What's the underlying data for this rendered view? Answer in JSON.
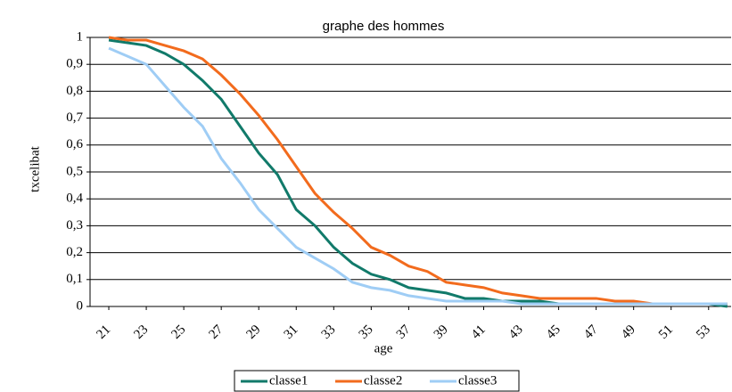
{
  "chart_data": {
    "type": "line",
    "title": "graphe des hommes",
    "x_label": "age",
    "y_label": "txcelibat",
    "x": [
      21,
      22,
      23,
      24,
      25,
      26,
      27,
      28,
      29,
      30,
      31,
      32,
      33,
      34,
      35,
      36,
      37,
      38,
      39,
      40,
      41,
      42,
      43,
      44,
      45,
      46,
      47,
      48,
      49,
      50,
      51,
      52,
      53,
      54
    ],
    "xlim": [
      20,
      54.2
    ],
    "xticks": [
      21,
      23,
      25,
      27,
      29,
      31,
      33,
      35,
      37,
      39,
      41,
      43,
      45,
      47,
      49,
      51,
      53
    ],
    "ylim": [
      0,
      1
    ],
    "yticks": [
      0,
      {
        "value": 0.1,
        "label": "0,1"
      },
      {
        "value": 0.2,
        "label": "0,2"
      },
      {
        "value": 0.3,
        "label": "0,3"
      },
      {
        "value": 0.4,
        "label": "0,4"
      },
      {
        "value": 0.5,
        "label": "0,5"
      },
      {
        "value": 0.6,
        "label": "0,6"
      },
      {
        "value": 0.7,
        "label": "0,7"
      },
      {
        "value": 0.8,
        "label": "0,8"
      },
      {
        "value": 0.9,
        "label": "0,9"
      },
      1
    ],
    "grid": true,
    "series": [
      {
        "name": "classe1",
        "color": "#117a6a",
        "values": [
          0.99,
          0.98,
          0.97,
          0.94,
          0.9,
          0.84,
          0.77,
          0.67,
          0.57,
          0.49,
          0.36,
          0.3,
          0.22,
          0.16,
          0.12,
          0.1,
          0.07,
          0.06,
          0.05,
          0.03,
          0.03,
          0.02,
          0.02,
          0.02,
          0.01,
          0.01,
          0.01,
          0.01,
          0.01,
          0.01,
          0.01,
          0.01,
          0.01,
          0.0
        ]
      },
      {
        "name": "classe2",
        "color": "#f26b1d",
        "values": [
          1.0,
          0.99,
          0.99,
          0.97,
          0.95,
          0.92,
          0.86,
          0.79,
          0.71,
          0.62,
          0.52,
          0.42,
          0.35,
          0.29,
          0.22,
          0.19,
          0.15,
          0.13,
          0.09,
          0.08,
          0.07,
          0.05,
          0.04,
          0.03,
          0.03,
          0.03,
          0.03,
          0.02,
          0.02,
          0.01,
          0.01,
          0.01,
          0.01,
          0.01
        ]
      },
      {
        "name": "classe3",
        "color": "#9fcdf5",
        "values": [
          0.96,
          0.93,
          0.9,
          0.82,
          0.74,
          0.67,
          0.55,
          0.46,
          0.36,
          0.29,
          0.22,
          0.18,
          0.14,
          0.09,
          0.07,
          0.06,
          0.04,
          0.03,
          0.02,
          0.02,
          0.02,
          0.02,
          0.01,
          0.01,
          0.01,
          0.01,
          0.01,
          0.01,
          0.01,
          0.01,
          0.01,
          0.01,
          0.01,
          0.01
        ]
      }
    ]
  }
}
